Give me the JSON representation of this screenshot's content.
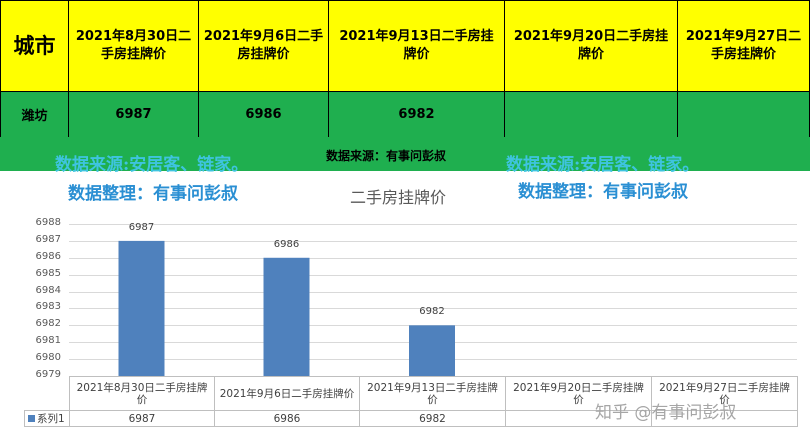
{
  "table": {
    "city_header": "城市",
    "date_headers": [
      "2021年8月30日二手房挂牌价",
      "2021年9月6日二手房挂牌价",
      "2021年9月13日二手房挂牌价",
      "2021年9月20日二手房挂牌价",
      "2021年9月27日二手房挂牌价"
    ],
    "city": "潍坊",
    "prices": [
      "6987",
      "6986",
      "6982",
      "",
      ""
    ]
  },
  "watermarks": {
    "source_left": "数据来源:安居客、链家。",
    "source_center": "数据来源：有事问彭叔",
    "source_right": "数据来源:安居客、链家。",
    "organizer_left": "数据整理：有事问彭叔",
    "organizer_right": "数据整理：有事问彭叔",
    "zhihu": "知乎 @有事问彭叔"
  },
  "colors": {
    "header_bg": "#ffff00",
    "row_bg": "#1faf4f",
    "bar": "#4f81bd",
    "watermark_light": "#3ec4df",
    "watermark_dark": "#2a8fd3"
  },
  "chart_data": {
    "type": "bar",
    "title": "二手房挂牌价",
    "categories": [
      "2021年8月30日二手房挂牌价",
      "2021年9月6日二手房挂牌价",
      "2021年9月13日二手房挂牌价",
      "2021年9月20日二手房挂牌价",
      "2021年9月27日二手房挂牌价"
    ],
    "series": [
      {
        "name": "系列1",
        "values": [
          6987,
          6986,
          6982,
          null,
          null
        ]
      }
    ],
    "ylim": [
      6979,
      6988
    ],
    "yticks": [
      6979,
      6980,
      6981,
      6982,
      6983,
      6984,
      6985,
      6986,
      6987,
      6988
    ],
    "data_labels": [
      "6987",
      "6986",
      "6982"
    ],
    "grid": true,
    "legend": "data-table"
  }
}
